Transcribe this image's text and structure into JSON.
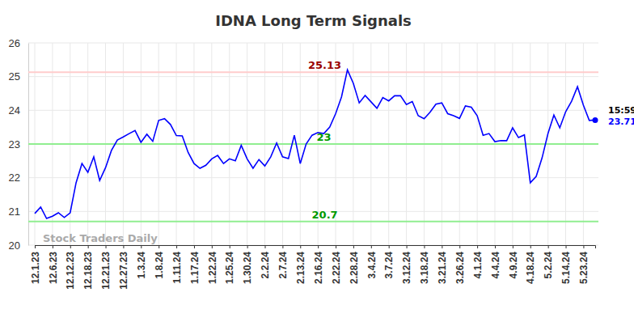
{
  "chart_data": {
    "type": "line",
    "title": "IDNA Long Term Signals",
    "watermark": "Stock Traders Daily",
    "categories": [
      "12.1.23",
      null,
      null,
      "12.6.23",
      null,
      null,
      "12.12.23",
      null,
      null,
      "12.18.23",
      null,
      null,
      "12.21.23",
      null,
      null,
      "12.27.23",
      null,
      null,
      "1.3.24",
      null,
      null,
      "1.8.24",
      null,
      null,
      "1.11.24",
      null,
      null,
      "1.17.24",
      null,
      null,
      "1.22.24",
      null,
      null,
      "1.25.24",
      null,
      null,
      "1.30.24",
      null,
      null,
      "2.2.24",
      null,
      null,
      "2.7.24",
      null,
      null,
      "2.13.24",
      null,
      null,
      "2.16.24",
      null,
      null,
      "2.22.24",
      null,
      null,
      "2.28.24",
      null,
      null,
      "3.4.24",
      null,
      null,
      "3.7.24",
      null,
      null,
      "3.12.24",
      null,
      null,
      "3.18.24",
      null,
      null,
      "3.21.24",
      null,
      null,
      "3.26.24",
      null,
      null,
      "4.1.24",
      null,
      null,
      "4.4.24",
      null,
      null,
      "4.9.24",
      null,
      null,
      "4.18.24",
      null,
      null,
      "5.2.24",
      null,
      null,
      "5.14.24",
      null,
      null,
      "5.23.24",
      null,
      null
    ],
    "values": [
      20.94,
      21.13,
      20.79,
      20.86,
      20.96,
      20.82,
      20.96,
      21.85,
      22.42,
      22.16,
      22.62,
      21.92,
      22.3,
      22.81,
      23.12,
      23.21,
      23.31,
      23.4,
      23.05,
      23.29,
      23.08,
      23.7,
      23.75,
      23.58,
      23.25,
      23.24,
      22.75,
      22.42,
      22.28,
      22.37,
      22.56,
      22.66,
      22.42,
      22.56,
      22.5,
      22.96,
      22.56,
      22.28,
      22.54,
      22.35,
      22.62,
      23.03,
      22.62,
      22.57,
      23.26,
      22.42,
      23.0,
      23.26,
      23.34,
      23.31,
      23.5,
      23.9,
      24.4,
      25.2,
      24.8,
      24.22,
      24.44,
      24.25,
      24.06,
      24.38,
      24.28,
      24.43,
      24.43,
      24.17,
      24.26,
      23.84,
      23.75,
      23.94,
      24.18,
      24.22,
      23.9,
      23.84,
      23.76,
      24.13,
      24.09,
      23.84,
      23.26,
      23.31,
      23.07,
      23.1,
      23.1,
      23.48,
      23.19,
      23.27,
      21.85,
      22.04,
      22.59,
      23.31,
      23.86,
      23.48,
      23.96,
      24.27,
      24.7,
      24.15,
      23.7,
      23.71
    ],
    "color": "#0000ff",
    "ylim": [
      20,
      26
    ],
    "yticks": [
      20,
      21,
      22,
      23,
      24,
      25,
      26
    ],
    "grid": true,
    "reference_lines": [
      {
        "value": 25.13,
        "color": "#ffcccc"
      },
      {
        "value": 23,
        "color": "#90ee90"
      },
      {
        "value": 20.7,
        "color": "#90ee90"
      }
    ],
    "annotations": [
      {
        "text": "15:59",
        "x": 95
      }
    ]
  }
}
